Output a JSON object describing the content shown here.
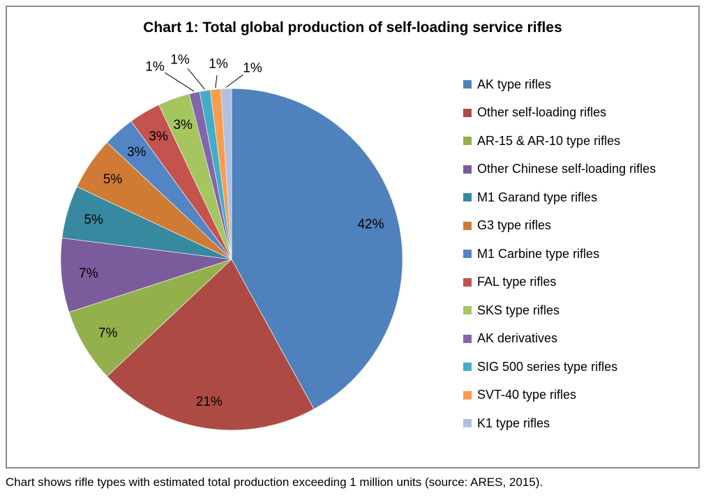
{
  "title": "Chart 1: Total global production of self-loading service rifles",
  "caption": "Chart shows rifle types with estimated total production exceeding 1 million units (source: ARES, 2015).",
  "chart_data": {
    "type": "pie",
    "title": "Chart 1: Total global production of self-loading service rifles",
    "start_angle_deg": 0,
    "direction": "clockwise",
    "legend_position": "right",
    "values_are": "percent",
    "slices": [
      {
        "label": "AK type rifles",
        "value": 42,
        "label_text": "42%",
        "color": "#4F81BD",
        "label_placement": "inside"
      },
      {
        "label": "Other self-loading rifles",
        "value": 21,
        "label_text": "21%",
        "color": "#AE4A44",
        "label_placement": "inside"
      },
      {
        "label": "AR-15 & AR-10 type rifles",
        "value": 7,
        "label_text": "7%",
        "color": "#94B04C",
        "label_placement": "inside"
      },
      {
        "label": "Other Chinese self-loading rifles",
        "value": 7,
        "label_text": "7%",
        "color": "#7A5C9D",
        "label_placement": "inside"
      },
      {
        "label": "M1 Garand type rifles",
        "value": 5,
        "label_text": "5%",
        "color": "#3789A0",
        "label_placement": "inside"
      },
      {
        "label": "G3 type rifles",
        "value": 5,
        "label_text": "5%",
        "color": "#D07B33",
        "label_placement": "inside"
      },
      {
        "label": "M1 Carbine type rifles",
        "value": 3,
        "label_text": "3%",
        "color": "#5385C4",
        "label_placement": "inside"
      },
      {
        "label": "FAL type rifles",
        "value": 3,
        "label_text": "3%",
        "color": "#C4524D",
        "label_placement": "inside"
      },
      {
        "label": "SKS type rifles",
        "value": 3,
        "label_text": "3%",
        "color": "#A5C55F",
        "label_placement": "inside"
      },
      {
        "label": "AK derivatives",
        "value": 1,
        "label_text": "1%",
        "color": "#8266AC",
        "label_placement": "outside"
      },
      {
        "label": "SIG 500 series type rifles",
        "value": 1,
        "label_text": "1%",
        "color": "#42ADC8",
        "label_placement": "outside"
      },
      {
        "label": "SVT-40 type rifles",
        "value": 1,
        "label_text": "1%",
        "color": "#F99D4E",
        "label_placement": "outside"
      },
      {
        "label": "K1 type rifles",
        "value": 1,
        "label_text": "1%",
        "color": "#B1C0DF",
        "label_placement": "outside"
      }
    ]
  }
}
